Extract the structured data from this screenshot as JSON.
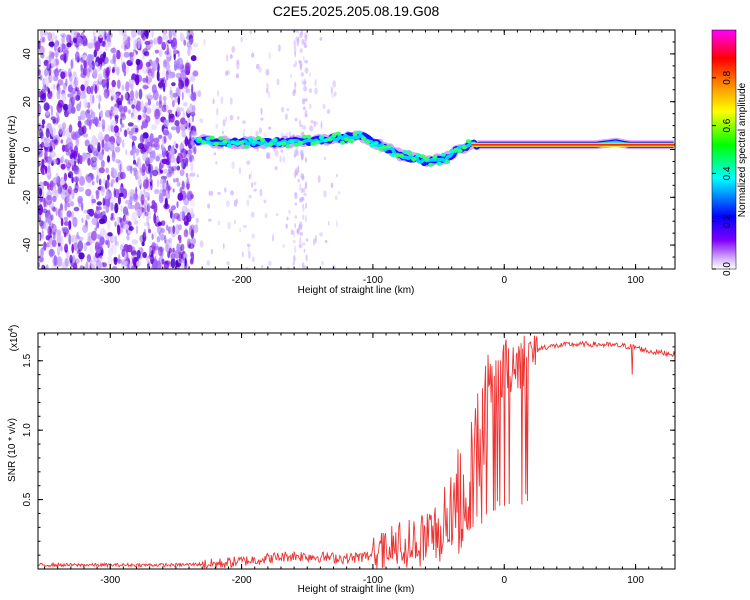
{
  "title": "C2E5.2025.205.08.19.G08",
  "chart_data": [
    {
      "type": "heatmap",
      "title": "C2E5.2025.205.08.19.G08",
      "xlabel": "Height of straight line (km)",
      "ylabel": "Frequency (Hz)",
      "xlim": [
        -355,
        130
      ],
      "ylim": [
        -50,
        50
      ],
      "xticks": [
        -300,
        -200,
        -100,
        0,
        100
      ],
      "xtick_labels": [
        "-300",
        "-200",
        "-100",
        "0",
        "100"
      ],
      "yticks": [
        -40,
        -20,
        0,
        20,
        40
      ],
      "ytick_labels": [
        "-40",
        "-20",
        "0",
        "20",
        "40"
      ],
      "colorbar": {
        "label": "Normalized spectral amplitude",
        "range": [
          0,
          1
        ],
        "ticks": [
          0.0,
          0.2,
          0.4,
          0.6,
          0.8
        ],
        "tick_labels": [
          "0.0",
          "0.2",
          "0.4",
          "0.6",
          "0.8"
        ],
        "colors": [
          "#ffffff",
          "#8000ff",
          "#0000ff",
          "#00ffff",
          "#00ff00",
          "#ffff00",
          "#ff8000",
          "#ff0000",
          "#ff00ff"
        ]
      },
      "noise_region_end_km": -235,
      "ridge": {
        "x": [
          -235,
          -220,
          -200,
          -180,
          -160,
          -140,
          -120,
          -110,
          -100,
          -80,
          -60,
          -45,
          -35,
          -25,
          -10,
          0,
          20,
          50,
          70,
          85,
          95,
          110,
          130
        ],
        "y": [
          4,
          3,
          3,
          3,
          3,
          4,
          5,
          6,
          3,
          -2,
          -5,
          -4,
          0,
          2,
          2,
          2,
          2,
          2,
          2,
          3,
          2,
          2,
          2
        ]
      }
    },
    {
      "type": "line",
      "xlabel": "Height of straight line (km)",
      "ylabel": "SNR (10 * v/v)",
      "multiplier_label": "(x10",
      "multiplier_exp": "4",
      "multiplier_close": ")",
      "xlim": [
        -355,
        130
      ],
      "ylim": [
        0,
        1.7
      ],
      "xticks": [
        -300,
        -200,
        -100,
        0,
        100
      ],
      "xtick_labels": [
        "-300",
        "-200",
        "-100",
        "0",
        "100"
      ],
      "yticks": [
        0.5,
        1.0,
        1.5
      ],
      "ytick_labels": [
        "0.5",
        "1.0",
        "1.5"
      ],
      "series": [
        {
          "color": "#ee3333",
          "x": [
            -355,
            -300,
            -250,
            -220,
            -200,
            -180,
            -160,
            -140,
            -120,
            -100,
            -90,
            -80,
            -70,
            -60,
            -50,
            -40,
            -30,
            -25,
            -20,
            -15,
            -10,
            -5,
            0,
            5,
            10,
            20,
            30,
            50,
            70,
            90,
            100,
            110,
            120,
            130
          ],
          "y": [
            0.03,
            0.03,
            0.03,
            0.04,
            0.06,
            0.08,
            0.1,
            0.09,
            0.08,
            0.1,
            0.14,
            0.18,
            0.2,
            0.24,
            0.3,
            0.45,
            0.65,
            0.8,
            1.0,
            1.15,
            1.3,
            1.4,
            1.45,
            1.5,
            1.52,
            1.56,
            1.6,
            1.62,
            1.62,
            1.61,
            1.6,
            1.57,
            1.56,
            1.55
          ]
        }
      ]
    }
  ]
}
